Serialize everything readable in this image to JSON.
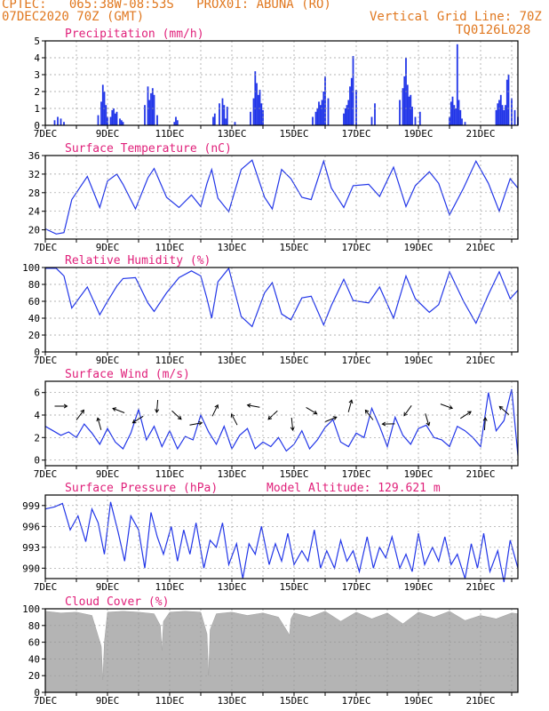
{
  "header": {
    "line1": "CPTEC:   065:38W-08:53S   PROX01: ABUNA (RO)",
    "line2": "07DEC2020 70Z (GMT)",
    "vgrid": "Vertical Grid Line: 70Z",
    "code": "TQ0126L028"
  },
  "colors": {
    "header": "#e07820",
    "title": "#e0207a",
    "series": "#2236e8",
    "cloud": "#b4b4b4",
    "grid": "#9a9a9a"
  },
  "x_ticks": [
    "7DEC",
    "9DEC",
    "11DEC",
    "13DEC",
    "15DEC",
    "17DEC",
    "19DEC",
    "21DEC"
  ],
  "chart_data": [
    {
      "type": "bar",
      "title": "Precipitation (mm/h)",
      "ylim": [
        0,
        5
      ],
      "yticks": [
        "0",
        "1",
        "2",
        "3",
        "4",
        "5"
      ],
      "x": [
        0.3,
        0.4,
        0.5,
        0.6,
        1.7,
        1.8,
        1.85,
        1.9,
        1.95,
        2.0,
        2.1,
        2.15,
        2.2,
        2.25,
        2.3,
        2.4,
        2.45,
        2.5,
        3.2,
        3.3,
        3.35,
        3.4,
        3.45,
        3.5,
        3.6,
        4.15,
        4.2,
        4.25,
        5.4,
        5.45,
        5.6,
        5.7,
        5.75,
        5.8,
        5.85,
        6.1,
        6.6,
        6.7,
        6.75,
        6.8,
        6.85,
        6.9,
        6.95,
        7.0,
        8.6,
        8.7,
        8.75,
        8.8,
        8.85,
        8.9,
        8.95,
        9.0,
        9.1,
        9.6,
        9.65,
        9.7,
        9.75,
        9.8,
        9.85,
        9.9,
        10.0,
        10.5,
        10.6,
        11.4,
        11.5,
        11.55,
        11.6,
        11.65,
        11.7,
        11.75,
        11.8,
        11.9,
        12.05,
        13.0,
        13.05,
        13.1,
        13.15,
        13.2,
        13.25,
        13.3,
        13.35,
        13.4,
        13.5,
        14.5,
        14.55,
        14.6,
        14.65,
        14.7,
        14.75,
        14.8,
        14.85,
        14.9,
        15.0,
        15.1,
        15.2
      ],
      "values": [
        0.3,
        0.5,
        0.4,
        0.2,
        0.6,
        1.4,
        2.4,
        2.0,
        1.2,
        0.5,
        0.5,
        0.9,
        1.0,
        0.7,
        0.8,
        0.4,
        0.3,
        0.2,
        1.2,
        2.3,
        1.5,
        1.9,
        2.2,
        1.8,
        0.6,
        0.2,
        0.5,
        0.3,
        0.5,
        0.7,
        1.3,
        1.6,
        1.2,
        0.4,
        1.1,
        0.2,
        0.8,
        1.6,
        3.2,
        2.5,
        1.8,
        2.1,
        1.3,
        0.9,
        0.5,
        0.8,
        1.0,
        1.4,
        1.2,
        1.5,
        2.0,
        2.9,
        1.6,
        0.7,
        1.0,
        1.2,
        1.5,
        2.3,
        2.8,
        4.1,
        2.1,
        0.5,
        1.3,
        1.5,
        2.2,
        2.9,
        4.0,
        2.4,
        1.7,
        1.8,
        1.1,
        0.5,
        0.8,
        0.5,
        1.4,
        1.7,
        1.2,
        1.0,
        4.8,
        1.5,
        0.9,
        0.4,
        0.2,
        0.9,
        1.3,
        1.5,
        1.8,
        1.2,
        0.9,
        1.2,
        2.7,
        3.0,
        1.6,
        0.9,
        0.5
      ]
    },
    {
      "type": "line",
      "title": "Surface Temperature (nC)",
      "ylim": [
        18,
        36
      ],
      "yticks": [
        "20",
        "24",
        "28",
        "32",
        "36"
      ],
      "x": [
        0,
        0.35,
        0.6,
        0.85,
        1.35,
        1.75,
        2.0,
        2.3,
        2.5,
        2.9,
        3.3,
        3.5,
        3.9,
        4.3,
        4.7,
        5.0,
        5.2,
        5.35,
        5.55,
        5.9,
        6.3,
        6.65,
        7.05,
        7.3,
        7.6,
        7.9,
        8.25,
        8.55,
        8.95,
        9.2,
        9.6,
        9.9,
        10.4,
        10.75,
        11.2,
        11.6,
        11.9,
        12.35,
        12.65,
        13.0,
        13.45,
        13.85,
        14.25,
        14.6,
        14.95,
        15.2
      ],
      "values": [
        20.2,
        19.1,
        19.4,
        26.5,
        31.5,
        24.8,
        30.5,
        32.0,
        29.8,
        24.5,
        31.2,
        33.2,
        27.0,
        24.8,
        27.5,
        25.0,
        30.0,
        33.0,
        26.8,
        23.9,
        33.0,
        35.0,
        27.0,
        24.5,
        33.0,
        31.0,
        27.0,
        26.5,
        34.8,
        29.0,
        24.8,
        29.5,
        29.8,
        27.2,
        33.5,
        25.0,
        29.5,
        32.5,
        30.0,
        23.2,
        29.0,
        34.8,
        30.0,
        24.0,
        31.0,
        29.0
      ]
    },
    {
      "type": "line",
      "title": "Relative Humidity (%)",
      "ylim": [
        0,
        100
      ],
      "yticks": [
        "0",
        "20",
        "40",
        "60",
        "80",
        "100"
      ],
      "x": [
        0,
        0.35,
        0.6,
        0.85,
        1.35,
        1.75,
        2.0,
        2.3,
        2.5,
        2.9,
        3.3,
        3.5,
        3.9,
        4.3,
        4.7,
        5.0,
        5.2,
        5.35,
        5.55,
        5.9,
        6.3,
        6.65,
        7.05,
        7.3,
        7.6,
        7.9,
        8.25,
        8.55,
        8.95,
        9.2,
        9.6,
        9.9,
        10.4,
        10.75,
        11.2,
        11.6,
        11.9,
        12.35,
        12.65,
        13.0,
        13.45,
        13.85,
        14.25,
        14.6,
        14.95,
        15.2
      ],
      "values": [
        99,
        99,
        90,
        52,
        77,
        44,
        60,
        78,
        87,
        88,
        58,
        48,
        70,
        88,
        96,
        90,
        63,
        40,
        83,
        99,
        42,
        30,
        70,
        82,
        45,
        38,
        64,
        66,
        32,
        55,
        86,
        61,
        58,
        77,
        40,
        90,
        63,
        47,
        56,
        95,
        60,
        34,
        68,
        95,
        63,
        73
      ]
    },
    {
      "type": "line",
      "title": "Surface Wind (m/s)",
      "ylim": [
        -0.5,
        7
      ],
      "yticks": [
        "0",
        "2",
        "4",
        "6"
      ],
      "x": [
        0,
        0.25,
        0.5,
        0.75,
        1.0,
        1.25,
        1.5,
        1.75,
        2.0,
        2.25,
        2.5,
        2.75,
        3.0,
        3.25,
        3.5,
        3.75,
        4.0,
        4.25,
        4.5,
        4.75,
        5.0,
        5.25,
        5.5,
        5.75,
        6.0,
        6.25,
        6.5,
        6.75,
        7.0,
        7.25,
        7.5,
        7.75,
        8.0,
        8.25,
        8.5,
        8.75,
        9.0,
        9.25,
        9.5,
        9.75,
        10.0,
        10.25,
        10.5,
        10.75,
        11.0,
        11.25,
        11.5,
        11.75,
        12.0,
        12.25,
        12.5,
        12.75,
        13.0,
        13.25,
        13.5,
        13.75,
        14.0,
        14.25,
        14.5,
        14.75,
        15.0,
        15.2
      ],
      "values": [
        3.0,
        2.6,
        2.2,
        2.5,
        2.0,
        3.2,
        2.4,
        1.4,
        2.8,
        1.6,
        1.0,
        2.4,
        4.5,
        1.8,
        3.0,
        1.2,
        2.6,
        1.0,
        2.1,
        1.8,
        4.0,
        2.5,
        1.4,
        3.0,
        1.0,
        2.2,
        2.8,
        1.0,
        1.6,
        1.2,
        2.0,
        0.8,
        1.4,
        2.6,
        1.0,
        1.8,
        2.9,
        3.6,
        1.6,
        1.2,
        2.4,
        2.0,
        4.6,
        3.0,
        1.2,
        3.8,
        2.2,
        1.4,
        2.8,
        3.1,
        2.0,
        1.8,
        1.2,
        3.0,
        2.6,
        2.0,
        1.2,
        6.0,
        2.6,
        3.5,
        6.3,
        0.4
      ]
    },
    {
      "type": "line",
      "title": "Surface Pressure (hPa)",
      "subtitle": "Model Altitude: 129.621  m",
      "ylim": [
        988.5,
        1000.5
      ],
      "yticks": [
        "990",
        "993",
        "996",
        "999"
      ],
      "x": [
        0,
        0.3,
        0.55,
        0.8,
        1.05,
        1.3,
        1.5,
        1.7,
        1.9,
        2.1,
        2.35,
        2.55,
        2.75,
        3.0,
        3.2,
        3.4,
        3.6,
        3.8,
        4.05,
        4.25,
        4.45,
        4.65,
        4.85,
        5.1,
        5.3,
        5.5,
        5.7,
        5.9,
        6.15,
        6.35,
        6.55,
        6.75,
        6.95,
        7.2,
        7.4,
        7.6,
        7.8,
        8.0,
        8.25,
        8.45,
        8.65,
        8.85,
        9.05,
        9.3,
        9.5,
        9.7,
        9.9,
        10.1,
        10.35,
        10.55,
        10.75,
        10.95,
        11.15,
        11.4,
        11.6,
        11.8,
        12.0,
        12.2,
        12.45,
        12.65,
        12.85,
        13.05,
        13.25,
        13.5,
        13.7,
        13.9,
        14.1,
        14.3,
        14.55,
        14.75,
        14.95,
        15.2
      ],
      "values": [
        998.5,
        998.8,
        999.3,
        995.5,
        997.5,
        993.8,
        998.5,
        996.5,
        992.0,
        999.5,
        995.0,
        991.0,
        997.5,
        995.5,
        990.0,
        998.0,
        994.5,
        992.0,
        996.0,
        991.0,
        995.5,
        992.0,
        996.5,
        990.0,
        994.0,
        993.0,
        996.5,
        990.5,
        993.5,
        988.5,
        993.5,
        992.0,
        996.0,
        990.5,
        993.5,
        991.0,
        995.0,
        990.5,
        992.5,
        991.0,
        995.5,
        990.0,
        992.5,
        990.0,
        994.0,
        991.0,
        992.5,
        989.5,
        994.5,
        990.0,
        993.0,
        991.5,
        994.5,
        990.0,
        992.0,
        989.5,
        995.0,
        990.5,
        993.0,
        991.0,
        994.5,
        990.5,
        992.0,
        988.5,
        993.5,
        990.0,
        995.0,
        989.5,
        992.5,
        988.0,
        994.0,
        990.0
      ]
    },
    {
      "type": "area",
      "title": "Cloud Cover (%)",
      "ylim": [
        0,
        100
      ],
      "yticks": [
        "0",
        "20",
        "40",
        "60",
        "80",
        "100"
      ],
      "x": [
        0,
        0.5,
        1.0,
        1.5,
        1.8,
        1.85,
        1.9,
        2.0,
        2.5,
        3.0,
        3.5,
        3.7,
        3.75,
        3.8,
        4.0,
        4.5,
        5.0,
        5.2,
        5.25,
        5.3,
        5.5,
        6.0,
        6.5,
        7.0,
        7.5,
        7.8,
        7.85,
        7.9,
        8.0,
        8.5,
        9.0,
        9.5,
        10.0,
        10.5,
        11.0,
        11.5,
        12.0,
        12.5,
        13.0,
        13.5,
        14.0,
        14.5,
        15.0,
        15.2
      ],
      "values": [
        97,
        95,
        96,
        92,
        55,
        15,
        60,
        96,
        97,
        96,
        94,
        80,
        50,
        85,
        96,
        97,
        96,
        70,
        20,
        75,
        94,
        96,
        92,
        95,
        90,
        72,
        68,
        88,
        95,
        90,
        97,
        85,
        96,
        88,
        95,
        82,
        96,
        90,
        97,
        86,
        92,
        88,
        95,
        94
      ]
    }
  ]
}
